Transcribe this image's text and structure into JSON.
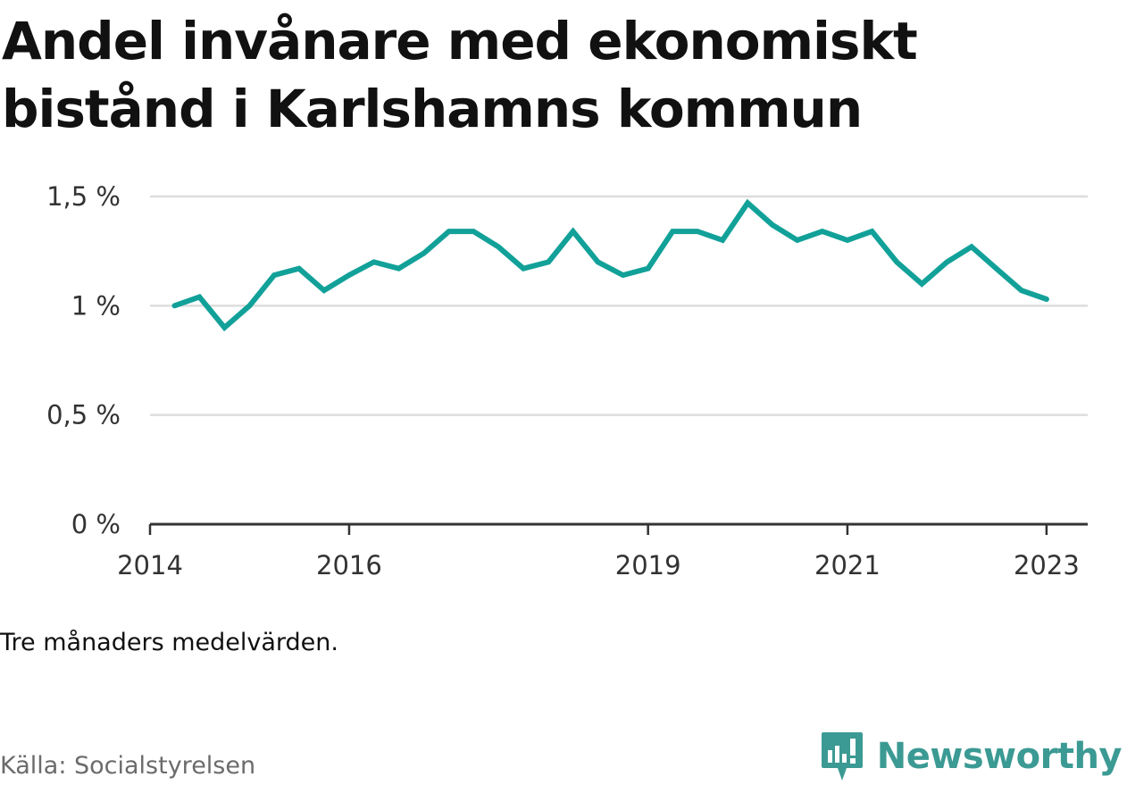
{
  "header": {
    "title": "Andel invånare med ekonomiskt bistånd i Karlshamns kommun"
  },
  "footer": {
    "note": "Tre månaders medelvärden.",
    "source": "Källa: Socialstyrelsen",
    "brand": "Newsworthy",
    "brand_icon": "newsworthy-logo-icon"
  },
  "colors": {
    "line": "#12a199",
    "grid": "#dddddd",
    "axis": "#333333",
    "brand": "#3b9a93"
  },
  "chart_data": {
    "type": "line",
    "title": "Andel invånare med ekonomiskt bistånd i Karlshamns kommun",
    "xlabel": "",
    "ylabel": "",
    "ylim": [
      0,
      1.5
    ],
    "xlim": [
      "2014-01-01",
      "2023-06-01"
    ],
    "grid": true,
    "y_ticks": [
      {
        "value": 0,
        "label": "0 %"
      },
      {
        "value": 0.5,
        "label": "0,5 %"
      },
      {
        "value": 1,
        "label": "1 %"
      },
      {
        "value": 1.5,
        "label": "1,5 %"
      }
    ],
    "x_ticks": [
      {
        "value": "2014-01-01",
        "label": "2014"
      },
      {
        "value": "2016-01-01",
        "label": "2016"
      },
      {
        "value": "2019-01-01",
        "label": "2019"
      },
      {
        "value": "2021-01-01",
        "label": "2021"
      },
      {
        "value": "2023-01-01",
        "label": "2023"
      }
    ],
    "series": [
      {
        "name": "",
        "x": [
          "2014-04",
          "2014-07",
          "2014-10",
          "2015-01",
          "2015-04",
          "2015-07",
          "2015-10",
          "2016-01",
          "2016-04",
          "2016-07",
          "2016-10",
          "2017-01",
          "2017-04",
          "2017-07",
          "2017-10",
          "2018-01",
          "2018-04",
          "2018-07",
          "2018-10",
          "2019-01",
          "2019-04",
          "2019-07",
          "2019-10",
          "2020-01",
          "2020-04",
          "2020-07",
          "2020-10",
          "2021-01",
          "2021-04",
          "2021-07",
          "2021-10",
          "2022-01",
          "2022-04",
          "2022-07",
          "2022-10",
          "2023-01"
        ],
        "values": [
          1.0,
          1.04,
          0.9,
          1.0,
          1.14,
          1.17,
          1.07,
          1.14,
          1.2,
          1.17,
          1.24,
          1.34,
          1.34,
          1.27,
          1.17,
          1.2,
          1.34,
          1.2,
          1.14,
          1.17,
          1.34,
          1.34,
          1.3,
          1.47,
          1.37,
          1.3,
          1.34,
          1.3,
          1.34,
          1.2,
          1.1,
          1.2,
          1.27,
          1.17,
          1.07,
          1.03
        ]
      }
    ]
  }
}
